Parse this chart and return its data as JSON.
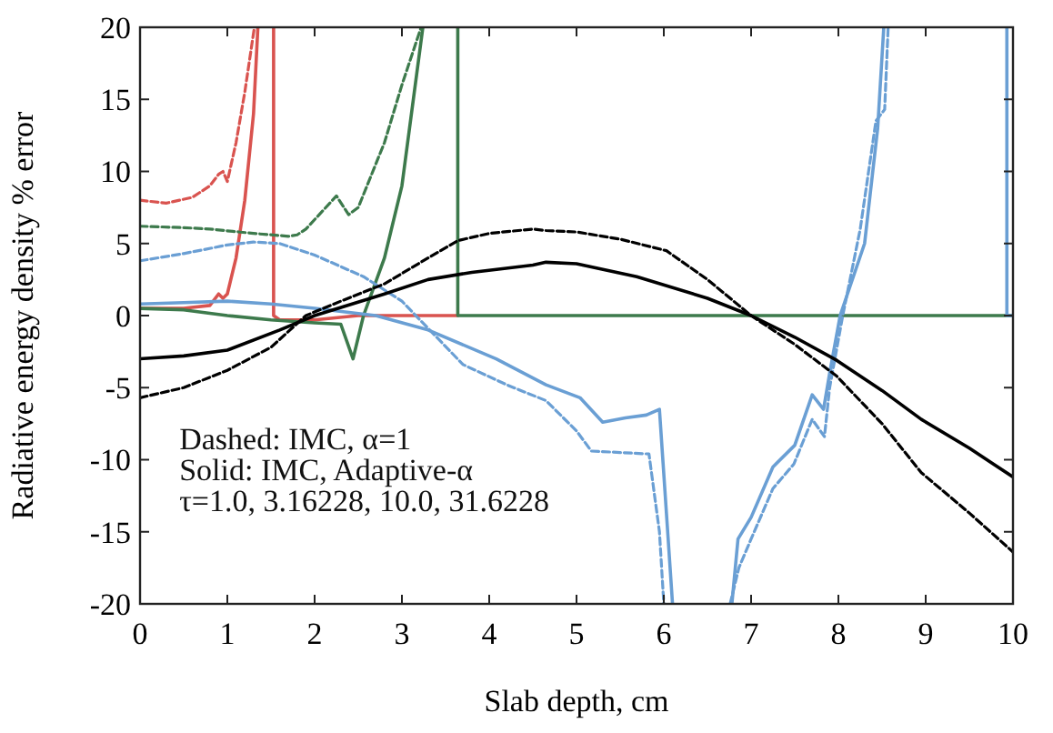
{
  "chart_data": {
    "type": "line",
    "xlabel": "Slab depth, cm",
    "ylabel": "Radiative energy density % error",
    "xlim": [
      0,
      10
    ],
    "ylim": [
      -20,
      20
    ],
    "xticks": [
      0,
      1,
      2,
      3,
      4,
      5,
      6,
      7,
      8,
      9,
      10
    ],
    "yticks": [
      -20,
      -15,
      -10,
      -5,
      0,
      5,
      10,
      15,
      20
    ],
    "grid": false,
    "annotations": [
      "Dashed: IMC, α=1",
      "Solid: IMC, Adaptive-α",
      "τ=1.0, 3.16228, 10.0, 31.6228"
    ],
    "series": [
      {
        "color": "#d9534f",
        "line_style": "dashed",
        "x": [
          0,
          0.3,
          0.6,
          0.8,
          0.9,
          0.95,
          1.0,
          1.1,
          1.2,
          1.31
        ],
        "values": [
          8,
          7.8,
          8.2,
          9,
          9.8,
          10,
          9.3,
          12,
          15.5,
          20
        ]
      },
      {
        "color": "#d9534f",
        "line_style": "solid",
        "x": [
          0,
          0.5,
          0.8,
          0.9,
          0.95,
          1.0,
          1.1,
          1.2,
          1.3,
          1.35,
          1.45,
          1.53,
          1.53,
          1.6,
          2.0,
          2.5,
          3.0,
          3.64
        ],
        "values": [
          0.5,
          0.5,
          0.7,
          1.5,
          1.2,
          1.5,
          4,
          8,
          14,
          20,
          null,
          20,
          0,
          -0.3,
          -0.3,
          0,
          0,
          0
        ]
      },
      {
        "color": "#3d7a4c",
        "line_style": "dashed",
        "x": [
          0,
          0.5,
          0.8,
          1.3,
          1.7,
          1.8,
          1.9,
          2.25,
          2.39,
          2.5,
          2.8,
          3.0,
          3.22
        ],
        "values": [
          6.2,
          6.1,
          6,
          5.7,
          5.5,
          5.6,
          6,
          8.3,
          7,
          7.5,
          12,
          16,
          20
        ]
      },
      {
        "color": "#3d7a4c",
        "line_style": "solid",
        "x": [
          0,
          0.5,
          1.0,
          1.5,
          2.0,
          2.3,
          2.44,
          2.56,
          2.8,
          3.0,
          3.24,
          3.4,
          3.64,
          3.64,
          5,
          7,
          10
        ],
        "values": [
          0.5,
          0.4,
          0,
          -0.3,
          -0.5,
          -0.6,
          -3,
          0,
          4,
          9,
          20,
          null,
          20,
          0,
          0,
          0,
          0
        ]
      },
      {
        "color": "#6a9fd4",
        "line_style": "dashed",
        "x": [
          0,
          0.5,
          1.0,
          1.3,
          1.6,
          2.0,
          2.56,
          3.0,
          3.7,
          4.2,
          4.65,
          5.0,
          5.17,
          5.5,
          5.83,
          5.95,
          6.0,
          6.3,
          6.76,
          6.86,
          7.0,
          7.25,
          7.49,
          7.7,
          7.84,
          7.9,
          8.05,
          8.25,
          8.43,
          8.53,
          8.57
        ],
        "values": [
          3.8,
          4.3,
          4.9,
          5.1,
          5,
          4.2,
          2.7,
          1,
          -3.4,
          -4.8,
          -5.9,
          -8,
          -9.4,
          -9.5,
          -9.6,
          -15,
          -20,
          null,
          -20,
          -17.5,
          -15.5,
          -12,
          -10.3,
          -7.2,
          -8.4,
          -5,
          0,
          6,
          13.5,
          14.3,
          20
        ]
      },
      {
        "color": "#6a9fd4",
        "line_style": "solid",
        "x": [
          0,
          0.5,
          1.0,
          1.5,
          2.0,
          2.7,
          3.3,
          4.08,
          4.65,
          5.04,
          5.3,
          5.56,
          5.8,
          5.95,
          6.1,
          6.4,
          6.78,
          6.85,
          7.0,
          7.25,
          7.5,
          7.7,
          7.83,
          7.9,
          8.02,
          8.3,
          8.45,
          8.52,
          9.2,
          9.93,
          9.93,
          10
        ],
        "values": [
          0.8,
          0.9,
          1,
          0.8,
          0.5,
          0,
          -1,
          -3,
          -4.8,
          -5.7,
          -7.4,
          -7.1,
          -6.9,
          -6.5,
          -20,
          null,
          -20,
          -15.5,
          -14,
          -10.5,
          -9,
          -5.5,
          -6.5,
          -4,
          0,
          5,
          13,
          20,
          null,
          20,
          0,
          0
        ]
      },
      {
        "color": "#000000",
        "line_style": "dashed",
        "x": [
          0,
          0.5,
          1.0,
          1.5,
          1.9,
          2.3,
          2.8,
          3.3,
          3.64,
          4.0,
          4.5,
          4.65,
          5.0,
          5.5,
          6.03,
          6.5,
          7.0,
          7.5,
          7.98,
          8.5,
          8.95,
          9.5,
          10
        ],
        "values": [
          -5.7,
          -5,
          -3.8,
          -2.2,
          0,
          1,
          2.2,
          4,
          5.2,
          5.7,
          6,
          5.9,
          5.8,
          5.3,
          4.5,
          2.5,
          0,
          -2,
          -4.2,
          -7.5,
          -10.9,
          -13.7,
          -16.4
        ]
      },
      {
        "color": "#000000",
        "line_style": "solid",
        "x": [
          0,
          0.5,
          1.0,
          1.6,
          2.0,
          2.8,
          3.3,
          3.8,
          4.5,
          4.65,
          5.0,
          5.69,
          6.5,
          7.0,
          7.5,
          7.98,
          8.5,
          8.95,
          9.5,
          10
        ],
        "values": [
          -3,
          -2.8,
          -2.4,
          -1,
          0,
          1.5,
          2.5,
          3,
          3.5,
          3.7,
          3.6,
          2.7,
          1.2,
          0,
          -1.5,
          -3.1,
          -5.2,
          -7.2,
          -9.2,
          -11.2
        ]
      }
    ]
  }
}
